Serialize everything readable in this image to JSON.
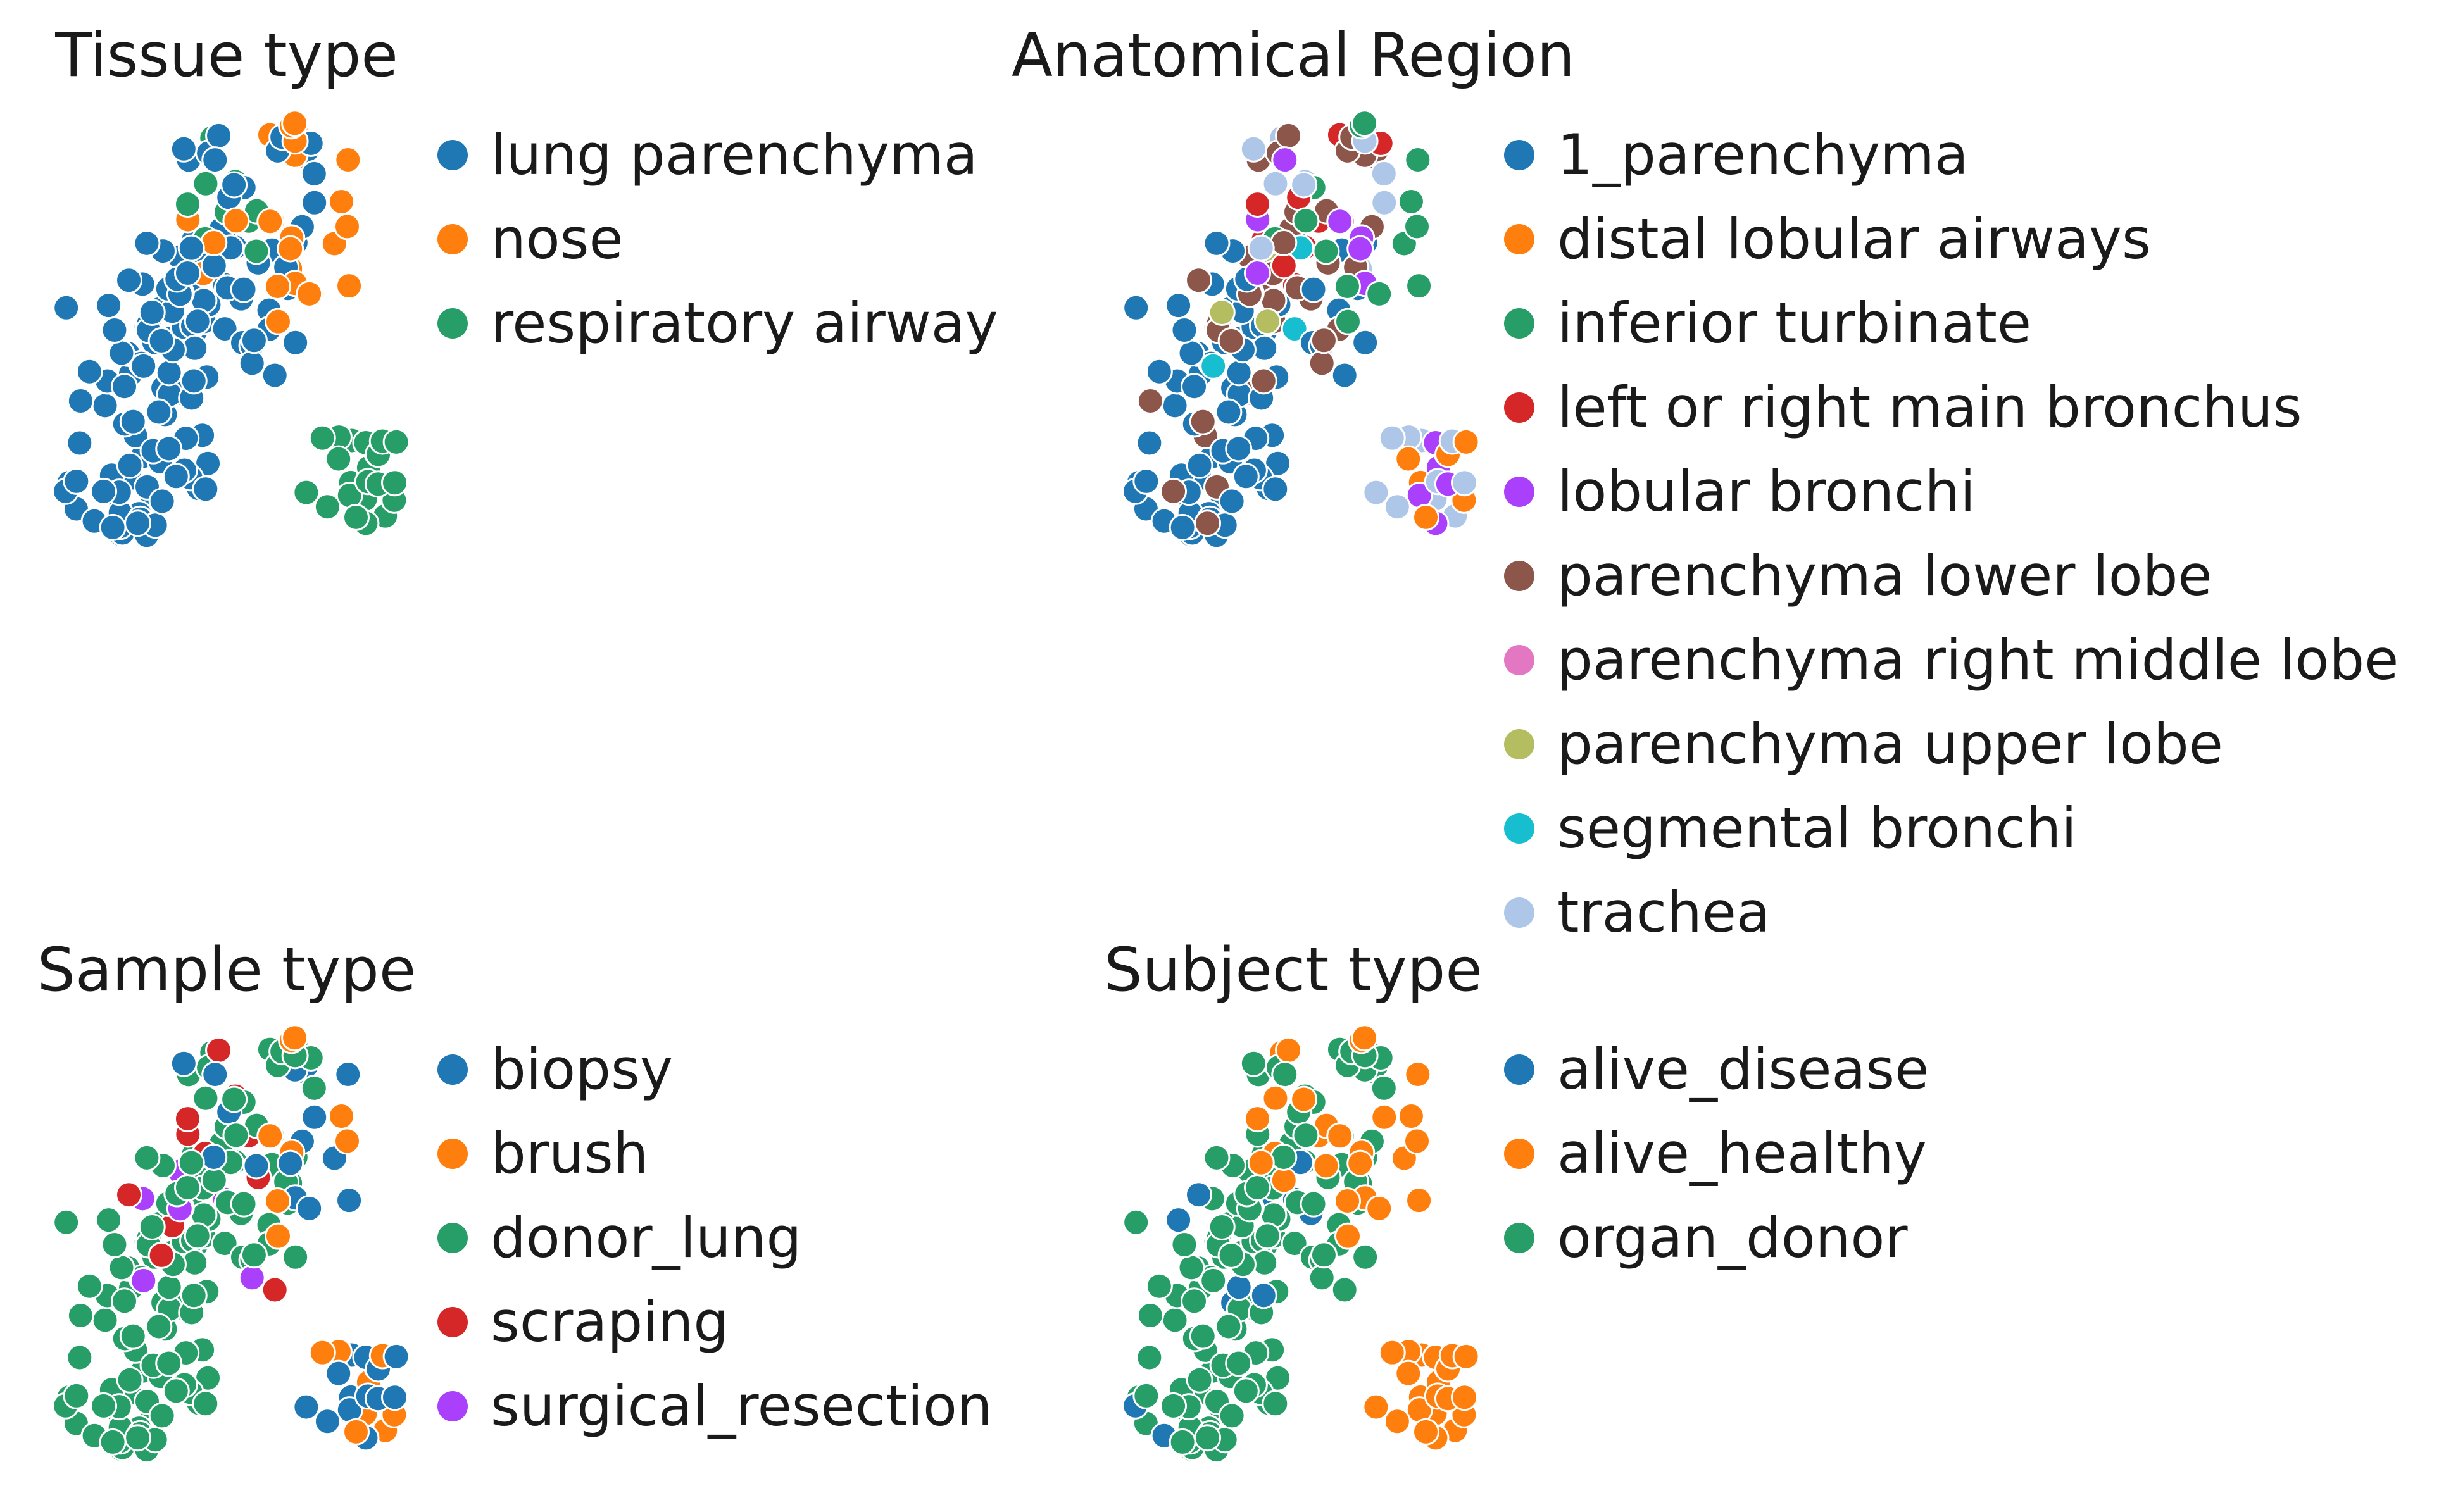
{
  "chart_data": [
    {
      "type": "scatter",
      "title": "Tissue type",
      "categories": [
        "lung parenchyma",
        "nose",
        "respiratory airway"
      ],
      "colors": [
        "#1f77b4",
        "#ff7f0e",
        "#279e68"
      ]
    },
    {
      "type": "scatter",
      "title": "Anatomical Region",
      "categories": [
        "1_parenchyma",
        "distal lobular airways",
        "inferior turbinate",
        "left or right main bronchus",
        "lobular bronchi",
        "parenchyma lower lobe",
        "parenchyma right middle lobe",
        "parenchyma upper lobe",
        "segmental bronchi",
        "trachea"
      ],
      "colors": [
        "#1f77b4",
        "#ff7f0e",
        "#279e68",
        "#d62728",
        "#aa40fc",
        "#8c564b",
        "#e377c2",
        "#b5bd61",
        "#17becf",
        "#aec7e8"
      ]
    },
    {
      "type": "scatter",
      "title": "Sample type",
      "categories": [
        "biopsy",
        "brush",
        "donor_lung",
        "scraping",
        "surgical_resection"
      ],
      "colors": [
        "#1f77b4",
        "#ff7f0e",
        "#279e68",
        "#d62728",
        "#aa40fc"
      ]
    },
    {
      "type": "scatter",
      "title": "Subject type",
      "categories": [
        "alive_disease",
        "alive_healthy",
        "organ_donor"
      ],
      "colors": [
        "#1f77b4",
        "#ff7f0e",
        "#279e68"
      ]
    }
  ]
}
